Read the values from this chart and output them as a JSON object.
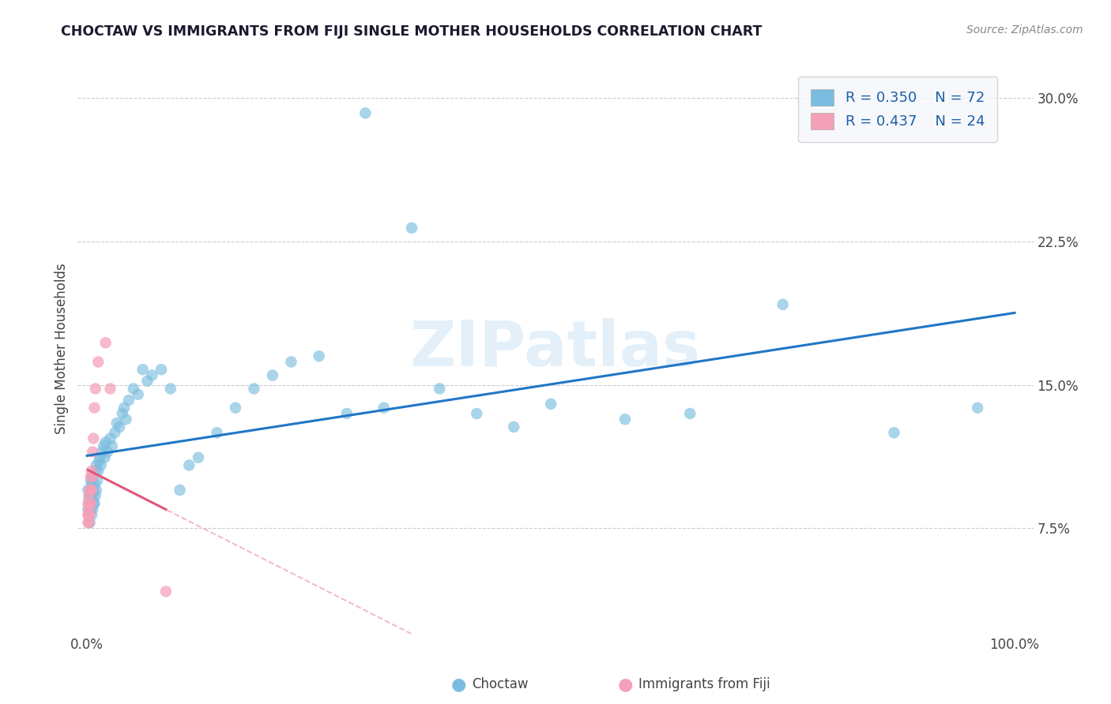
{
  "title": "CHOCTAW VS IMMIGRANTS FROM FIJI SINGLE MOTHER HOUSEHOLDS CORRELATION CHART",
  "source": "Source: ZipAtlas.com",
  "ylabel_label": "Single Mother Households",
  "choctaw_color": "#7bbde0",
  "fiji_color": "#f4a0b8",
  "choctaw_line_color": "#2176c7",
  "fiji_line_color": "#e05878",
  "fiji_line_dashed_color": "#f0b8c8",
  "watermark_text": "ZIPatlas",
  "legend_R1": "R = 0.350",
  "legend_N1": "N = 72",
  "legend_R2": "R = 0.437",
  "legend_N2": "N = 24",
  "choctaw_x": [
    0.001,
    0.001,
    0.002,
    0.002,
    0.003,
    0.003,
    0.003,
    0.004,
    0.004,
    0.004,
    0.005,
    0.005,
    0.005,
    0.006,
    0.006,
    0.006,
    0.007,
    0.007,
    0.008,
    0.008,
    0.009,
    0.009,
    0.01,
    0.01,
    0.011,
    0.012,
    0.013,
    0.014,
    0.015,
    0.016,
    0.018,
    0.019,
    0.02,
    0.022,
    0.025,
    0.027,
    0.03,
    0.032,
    0.035,
    0.038,
    0.04,
    0.042,
    0.045,
    0.05,
    0.055,
    0.06,
    0.065,
    0.07,
    0.08,
    0.09,
    0.1,
    0.11,
    0.12,
    0.14,
    0.16,
    0.18,
    0.2,
    0.22,
    0.25,
    0.28,
    0.3,
    0.32,
    0.35,
    0.38,
    0.42,
    0.46,
    0.5,
    0.58,
    0.65,
    0.75,
    0.87,
    0.96
  ],
  "choctaw_y": [
    0.095,
    0.085,
    0.09,
    0.082,
    0.088,
    0.092,
    0.078,
    0.085,
    0.093,
    0.1,
    0.082,
    0.09,
    0.098,
    0.085,
    0.092,
    0.102,
    0.088,
    0.095,
    0.088,
    0.098,
    0.092,
    0.105,
    0.095,
    0.108,
    0.1,
    0.105,
    0.11,
    0.112,
    0.108,
    0.115,
    0.118,
    0.112,
    0.12,
    0.115,
    0.122,
    0.118,
    0.125,
    0.13,
    0.128,
    0.135,
    0.138,
    0.132,
    0.142,
    0.148,
    0.145,
    0.158,
    0.152,
    0.155,
    0.158,
    0.148,
    0.095,
    0.108,
    0.112,
    0.125,
    0.138,
    0.148,
    0.155,
    0.162,
    0.165,
    0.135,
    0.292,
    0.138,
    0.232,
    0.148,
    0.135,
    0.128,
    0.14,
    0.132,
    0.135,
    0.192,
    0.125,
    0.138
  ],
  "fiji_x": [
    0.001,
    0.001,
    0.001,
    0.002,
    0.002,
    0.002,
    0.002,
    0.003,
    0.003,
    0.003,
    0.004,
    0.004,
    0.004,
    0.005,
    0.005,
    0.006,
    0.006,
    0.007,
    0.008,
    0.009,
    0.012,
    0.02,
    0.025,
    0.085
  ],
  "fiji_y": [
    0.082,
    0.088,
    0.078,
    0.082,
    0.078,
    0.085,
    0.092,
    0.082,
    0.088,
    0.095,
    0.088,
    0.095,
    0.102,
    0.095,
    0.105,
    0.102,
    0.115,
    0.122,
    0.138,
    0.148,
    0.162,
    0.172,
    0.148,
    0.042
  ],
  "xlim": [
    -0.01,
    1.02
  ],
  "ylim": [
    0.02,
    0.318
  ],
  "yticks": [
    0.075,
    0.15,
    0.225,
    0.3
  ],
  "ytick_labels": [
    "7.5%",
    "15.0%",
    "22.5%",
    "30.0%"
  ],
  "xtick_labels_left": "0.0%",
  "xtick_labels_right": "100.0%",
  "legend_label_choctaw": "Choctaw",
  "legend_label_fiji": "Immigrants from Fiji"
}
